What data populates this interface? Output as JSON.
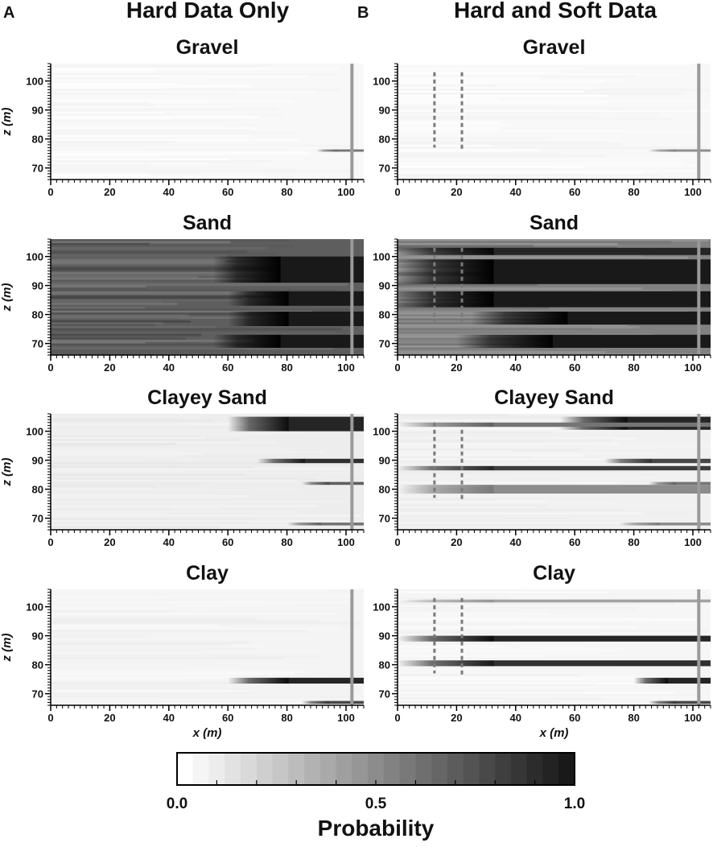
{
  "columns": [
    {
      "letter": "A",
      "title": "Hard Data Only"
    },
    {
      "letter": "B",
      "title": "Hard and Soft Data"
    }
  ],
  "facies": [
    "Gravel",
    "Sand",
    "Clayey Sand",
    "Clay"
  ],
  "axes": {
    "x_label": "x (m)",
    "z_label": "z (m)",
    "x_ticks": [
      0,
      20,
      40,
      60,
      80,
      100
    ],
    "z_ticks": [
      70,
      80,
      90,
      100
    ],
    "x_range": [
      0,
      106
    ],
    "z_range": [
      66,
      106
    ]
  },
  "colorbar": {
    "title": "Probability",
    "tick_labels": [
      "0.0",
      "0.5",
      "1.0"
    ],
    "range": [
      0,
      1
    ],
    "scale": "grayscale, white to black"
  },
  "wells": {
    "hard_data_well_x": 102,
    "soft_data_wells": [
      {
        "x": 12.5,
        "z_top": 103,
        "z_bottom": 77
      },
      {
        "x": 21.8,
        "z_top": 103,
        "z_bottom": 76
      }
    ]
  },
  "chart_data": [
    {
      "type": "heatmap",
      "panel": "A",
      "facies": "Gravel",
      "xlabel": "",
      "ylabel": "z (m)",
      "bands": [
        {
          "z_top": 76.4,
          "z_bottom": 75.6,
          "x_start": 90,
          "p_max": 0.6
        }
      ],
      "background_probability": 0.03
    },
    {
      "type": "heatmap",
      "panel": "A",
      "facies": "Sand",
      "xlabel": "",
      "ylabel": "z (m)",
      "bands": [
        {
          "z_top": 100.0,
          "z_bottom": 91.0,
          "x_start": 55,
          "p_max": 1.0
        },
        {
          "z_top": 88.0,
          "z_bottom": 83.0,
          "x_start": 60,
          "p_max": 1.0
        },
        {
          "z_top": 81.0,
          "z_bottom": 76.0,
          "x_start": 60,
          "p_max": 1.0
        },
        {
          "z_top": 73.0,
          "z_bottom": 68.5,
          "x_start": 55,
          "p_max": 1.0
        }
      ],
      "background_probability": 0.7
    },
    {
      "type": "heatmap",
      "panel": "A",
      "facies": "Clayey Sand",
      "xlabel": "",
      "ylabel": "z (m)",
      "bands": [
        {
          "z_top": 105.0,
          "z_bottom": 100.0,
          "x_start": 60,
          "p_max": 0.95
        },
        {
          "z_top": 90.5,
          "z_bottom": 89.0,
          "x_start": 70,
          "p_max": 0.9
        },
        {
          "z_top": 82.5,
          "z_bottom": 81.5,
          "x_start": 85,
          "p_max": 0.7
        },
        {
          "z_top": 68.5,
          "z_bottom": 67.5,
          "x_start": 80,
          "p_max": 0.6
        }
      ],
      "background_probability": 0.08
    },
    {
      "type": "heatmap",
      "panel": "A",
      "facies": "Clay",
      "xlabel": "x (m)",
      "ylabel": "z (m)",
      "bands": [
        {
          "z_top": 75.5,
          "z_bottom": 73.5,
          "x_start": 60,
          "p_max": 0.95
        },
        {
          "z_top": 67.5,
          "z_bottom": 66.5,
          "x_start": 85,
          "p_max": 0.8
        }
      ],
      "background_probability": 0.05
    },
    {
      "type": "heatmap",
      "panel": "B",
      "facies": "Gravel",
      "xlabel": "",
      "ylabel": "",
      "bands": [
        {
          "z_top": 76.4,
          "z_bottom": 75.6,
          "x_start": 85,
          "p_max": 0.5
        }
      ],
      "background_probability": 0.03
    },
    {
      "type": "heatmap",
      "panel": "B",
      "facies": "Sand",
      "xlabel": "",
      "ylabel": "",
      "bands": [
        {
          "z_top": 103.0,
          "z_bottom": 100.5,
          "x_start": 0,
          "p_max": 0.95
        },
        {
          "z_top": 99.0,
          "z_bottom": 90.5,
          "x_start": 0,
          "p_max": 1.0
        },
        {
          "z_top": 88.0,
          "z_bottom": 82.5,
          "x_start": 0,
          "p_max": 1.0
        },
        {
          "z_top": 81.0,
          "z_bottom": 76.5,
          "x_start": 25,
          "p_max": 1.0
        },
        {
          "z_top": 73.0,
          "z_bottom": 68.5,
          "x_start": 20,
          "p_max": 1.0
        }
      ],
      "background_probability": 0.55
    },
    {
      "type": "heatmap",
      "panel": "B",
      "facies": "Clayey Sand",
      "xlabel": "",
      "ylabel": "",
      "bands": [
        {
          "z_top": 105.0,
          "z_bottom": 100.5,
          "x_start": 55,
          "p_max": 0.95
        },
        {
          "z_top": 103.0,
          "z_bottom": 101.5,
          "x_start": 0,
          "p_max": 0.6
        },
        {
          "z_top": 88.0,
          "z_bottom": 86.5,
          "x_start": 0,
          "p_max": 0.85
        },
        {
          "z_top": 90.5,
          "z_bottom": 89.0,
          "x_start": 70,
          "p_max": 0.8
        },
        {
          "z_top": 82.5,
          "z_bottom": 81.5,
          "x_start": 85,
          "p_max": 0.6
        },
        {
          "z_top": 81.5,
          "z_bottom": 78.5,
          "x_start": 0,
          "p_max": 0.5
        },
        {
          "z_top": 68.5,
          "z_bottom": 67.5,
          "x_start": 75,
          "p_max": 0.5
        }
      ],
      "background_probability": 0.06
    },
    {
      "type": "heatmap",
      "panel": "B",
      "facies": "Clay",
      "xlabel": "x (m)",
      "ylabel": "",
      "bands": [
        {
          "z_top": 90.0,
          "z_bottom": 88.0,
          "x_start": 0,
          "p_max": 0.95
        },
        {
          "z_top": 81.5,
          "z_bottom": 79.5,
          "x_start": 0,
          "p_max": 0.9
        },
        {
          "z_top": 102.5,
          "z_bottom": 101.5,
          "x_start": 0,
          "p_max": 0.4
        },
        {
          "z_top": 75.5,
          "z_bottom": 73.5,
          "x_start": 80,
          "p_max": 0.95
        },
        {
          "z_top": 67.5,
          "z_bottom": 66.5,
          "x_start": 85,
          "p_max": 0.8
        }
      ],
      "background_probability": 0.04
    }
  ]
}
